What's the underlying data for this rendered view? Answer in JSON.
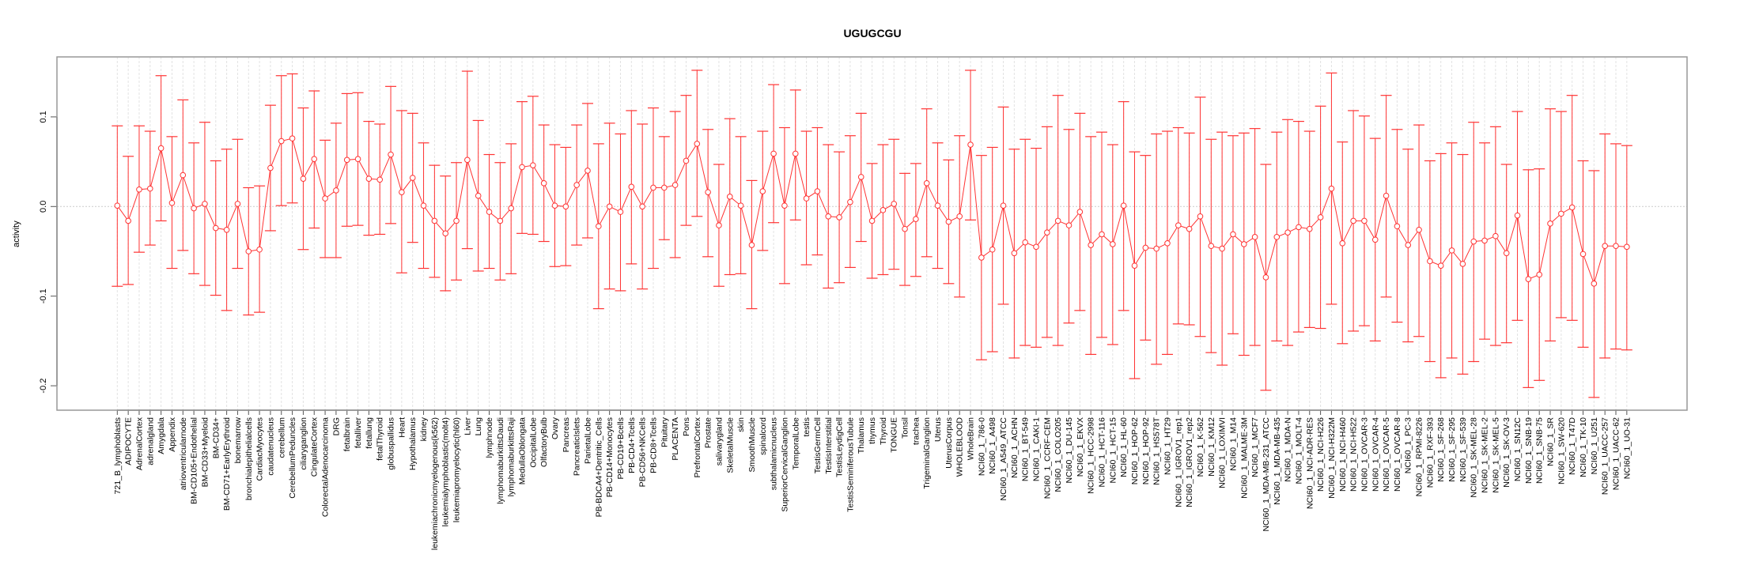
{
  "chart_data": {
    "type": "line",
    "title": "UGUGCGU",
    "xlabel": "",
    "ylabel": "activity",
    "ylim": [
      -0.233,
      0.163
    ],
    "yticks": [
      -0.2,
      -0.1,
      0.0,
      0.1
    ],
    "ytick_labels": [
      "-0.2",
      "-0.1",
      "0.0",
      "0.1"
    ],
    "grid": "vertical dashed at each category; horizontal dotted at 0",
    "color": "#ff3333",
    "categories": [
      "721_B_lymphoblasts",
      "ADIPOCYTE",
      "AdrenalCortex",
      "adrenalgland",
      "Amygdala",
      "Appendix",
      "atrioventricularnode",
      "BM-CD105+Endothelial",
      "BM-CD33+Myeloid",
      "BM-CD34+",
      "BM-CD71+EarlyErythroid",
      "bonemarrow",
      "bronchialepithelialcells",
      "CardiacMyocytes",
      "caudatenucleus",
      "cerebellum",
      "CerebellumPeduncles",
      "ciliaryganglion",
      "CingulateCortex",
      "ColorectalAdenocarcinoma",
      "DRG",
      "fetalbrain",
      "fetalliver",
      "fetallung",
      "fetalThyroid",
      "globuspallidus",
      "Heart",
      "Hypothalamus",
      "kidney",
      "leukemiachronicmyelogenous(k562)",
      "leukemialymphoblastic(molt4)",
      "leukemiapromyelocytic(hl60)",
      "Liver",
      "Lung",
      "lymphnode",
      "lymphomaburkittsDaudi",
      "lymphomaburkittsRaji",
      "MedullaOblongata",
      "OccipitalLobe",
      "OlfactoryBulb",
      "Ovary",
      "Pancreas",
      "PancreaticIslets",
      "ParietalLobe",
      "PB-BDCA4+Dentritic_Cells",
      "PB-CD14+Monocytes",
      "PB-CD19+Bcells",
      "PB-CD4+Tcells",
      "PB-CD56+NKCells",
      "PB-CD8+Tcells",
      "Pituitary",
      "PLACENTA",
      "Pons",
      "PrefrontalCortex",
      "Prostate",
      "salivarygland",
      "SkeletalMuscle",
      "skin",
      "SmoothMuscle",
      "spinalcord",
      "subthalamicnucleus",
      "SuperiorCervicalGanglion",
      "TemporalLobe",
      "testis",
      "TestisGermCell",
      "TestisInterstitial",
      "TestisLeydigCell",
      "TestisSeminiferousTubule",
      "Thalamus",
      "thymus",
      "Thyroid",
      "TONGUE",
      "Tonsil",
      "trachea",
      "TrigeminalGanglion",
      "Uterus",
      "UterusCorpus",
      "WHOLEBLOOD",
      "WholeBrain",
      "NCI60_1_786-0",
      "NCI60_1_A498",
      "NCI60_1_A549_ATCC",
      "NCI60_1_ACHN",
      "NCI60_1_BT-549",
      "NCI60_1_CAKI-1",
      "NCI60_1_CCRF-CEM",
      "NCI60_1_COLO205",
      "NCI60_1_DU-145",
      "NCI60_1_EKVX",
      "NCI60_1_HCC-2998",
      "NCI60_1_HCT-116",
      "NCI60_1_HCT-15",
      "NCI60_1_HL-60",
      "NCI60_1_HOP-62",
      "NCI60_1_HOP-92",
      "NCI60_1_HS578T",
      "NCI60_1_HT29",
      "NCI60_1_IGROV1_rep1",
      "NCI60_1_IGROV1_rep2",
      "NCI60_1_K-562",
      "NCI60_1_KM12",
      "NCI60_1_LOXIMVI",
      "NCI60_1_M14",
      "NCI60_1_MALME-3M",
      "NCI60_1_MCF7",
      "NCI60_1_MDA-MB-231_ATCC",
      "NCI60_1_MDA-MB-435",
      "NCI60_1_MDA-N",
      "NCI60_1_MOLT-4",
      "NCI60_1_NCI-ADR-RES",
      "NCI60_1_NCI-H226",
      "NCI60_1_NCI-H322M",
      "NCI60_1_NCI-H460",
      "NCI60_1_NCI-H522",
      "NCI60_1_OVCAR-3",
      "NCI60_1_OVCAR-4",
      "NCI60_1_OVCAR-5",
      "NCI60_1_OVCAR-8",
      "NCI60_1_PC-3",
      "NCI60_1_RPMI-8226",
      "NCI60_1_RXF-393",
      "NCI60_1_SF-268",
      "NCI60_1_SF-295",
      "NCI60_1_SF-539",
      "NCI60_1_SK-MEL-28",
      "NCI60_1_SK-MEL-2",
      "NCI60_1_SK-MEL-5",
      "NCI60_1_SK-OV-3",
      "NCI60_1_SN12C",
      "NCI60_1_SNB-19",
      "NCI60_1_SNB-75",
      "NCI60_1_SR",
      "NCI60_1_SW-620",
      "NCI60_1_T47D",
      "NCI60_1_TK-10",
      "NCI60_1_U251",
      "NCI60_1_UACC-257",
      "NCI60_1_UACC-62",
      "NCI60_1_UO-31"
    ],
    "values": [
      0.001,
      -0.016,
      0.019,
      0.02,
      0.065,
      0.004,
      0.035,
      -0.002,
      0.003,
      -0.024,
      -0.026,
      0.003,
      -0.05,
      -0.048,
      0.043,
      0.073,
      0.076,
      0.031,
      0.053,
      0.009,
      0.018,
      0.052,
      0.053,
      0.031,
      0.03,
      0.058,
      0.016,
      0.032,
      0.001,
      -0.016,
      -0.03,
      -0.016,
      0.052,
      0.012,
      -0.006,
      -0.016,
      -0.002,
      0.044,
      0.046,
      0.026,
      0.001,
      0.0,
      0.024,
      0.04,
      -0.022,
      0.0,
      -0.006,
      0.022,
      0.0,
      0.021,
      0.021,
      0.024,
      0.051,
      0.07,
      0.016,
      -0.021,
      0.011,
      0.001,
      -0.043,
      0.017,
      0.059,
      0.001,
      0.059,
      0.009,
      0.017,
      -0.011,
      -0.012,
      0.005,
      0.033,
      -0.016,
      -0.004,
      0.003,
      -0.025,
      -0.014,
      0.026,
      0.001,
      -0.017,
      -0.011,
      0.069,
      -0.057,
      -0.048,
      0.001,
      -0.052,
      -0.04,
      -0.045,
      -0.029,
      -0.016,
      -0.021,
      -0.006,
      -0.043,
      -0.031,
      -0.042,
      0.001,
      -0.066,
      -0.046,
      -0.047,
      -0.041,
      -0.021,
      -0.025,
      -0.011,
      -0.044,
      -0.047,
      -0.031,
      -0.042,
      -0.034,
      -0.079,
      -0.034,
      -0.029,
      -0.023,
      -0.025,
      -0.012,
      0.02,
      -0.041,
      -0.016,
      -0.016,
      -0.037,
      0.012,
      -0.022,
      -0.043,
      -0.026,
      -0.061,
      -0.066,
      -0.049,
      -0.064,
      -0.039,
      -0.038,
      -0.033,
      -0.052,
      -0.01,
      -0.081,
      -0.076,
      -0.019,
      -0.008,
      -0.001,
      -0.053,
      -0.086,
      -0.044,
      -0.044,
      -0.045
    ],
    "upper": [
      0.09,
      0.056,
      0.09,
      0.084,
      0.146,
      0.078,
      0.119,
      0.071,
      0.094,
      0.051,
      0.064,
      0.075,
      0.021,
      0.023,
      0.113,
      0.146,
      0.148,
      0.11,
      0.129,
      0.074,
      0.093,
      0.126,
      0.127,
      0.095,
      0.092,
      0.134,
      0.107,
      0.104,
      0.071,
      0.046,
      0.034,
      0.049,
      0.151,
      0.096,
      0.058,
      0.049,
      0.07,
      0.117,
      0.123,
      0.091,
      0.069,
      0.066,
      0.091,
      0.115,
      0.07,
      0.093,
      0.081,
      0.107,
      0.092,
      0.11,
      0.078,
      0.106,
      0.124,
      0.152,
      0.086,
      0.047,
      0.098,
      0.078,
      0.029,
      0.084,
      0.136,
      0.088,
      0.13,
      0.084,
      0.088,
      0.069,
      0.061,
      0.079,
      0.104,
      0.048,
      0.069,
      0.075,
      0.037,
      0.048,
      0.109,
      0.071,
      0.052,
      0.079,
      0.152,
      0.057,
      0.066,
      0.111,
      0.064,
      0.075,
      0.065,
      0.089,
      0.124,
      0.086,
      0.104,
      0.078,
      0.083,
      0.069,
      0.117,
      0.061,
      0.057,
      0.081,
      0.084,
      0.088,
      0.082,
      0.122,
      0.075,
      0.083,
      0.079,
      0.082,
      0.087,
      0.047,
      0.083,
      0.097,
      0.095,
      0.084,
      0.112,
      0.149,
      0.072,
      0.107,
      0.101,
      0.076,
      0.124,
      0.086,
      0.064,
      0.091,
      0.051,
      0.059,
      0.071,
      0.058,
      0.094,
      0.071,
      0.089,
      0.047,
      0.106,
      0.041,
      0.042,
      0.109,
      0.106,
      0.124,
      0.051,
      0.04,
      0.081,
      0.07,
      0.068
    ],
    "lower": [
      -0.089,
      -0.087,
      -0.051,
      -0.043,
      -0.016,
      -0.069,
      -0.049,
      -0.075,
      -0.088,
      -0.099,
      -0.116,
      -0.069,
      -0.121,
      -0.118,
      -0.027,
      0.001,
      0.004,
      -0.048,
      -0.024,
      -0.057,
      -0.057,
      -0.022,
      -0.021,
      -0.032,
      -0.031,
      -0.019,
      -0.074,
      -0.04,
      -0.069,
      -0.079,
      -0.094,
      -0.082,
      -0.047,
      -0.072,
      -0.069,
      -0.082,
      -0.075,
      -0.03,
      -0.031,
      -0.039,
      -0.067,
      -0.066,
      -0.043,
      -0.035,
      -0.114,
      -0.092,
      -0.094,
      -0.064,
      -0.092,
      -0.069,
      -0.037,
      -0.057,
      -0.021,
      -0.011,
      -0.056,
      -0.089,
      -0.076,
      -0.075,
      -0.114,
      -0.049,
      -0.018,
      -0.086,
      -0.015,
      -0.065,
      -0.054,
      -0.091,
      -0.085,
      -0.068,
      -0.039,
      -0.08,
      -0.076,
      -0.07,
      -0.088,
      -0.078,
      -0.056,
      -0.069,
      -0.086,
      -0.101,
      -0.015,
      -0.171,
      -0.162,
      -0.109,
      -0.169,
      -0.155,
      -0.157,
      -0.146,
      -0.155,
      -0.13,
      -0.116,
      -0.165,
      -0.146,
      -0.154,
      -0.116,
      -0.192,
      -0.149,
      -0.176,
      -0.165,
      -0.131,
      -0.132,
      -0.145,
      -0.163,
      -0.177,
      -0.142,
      -0.166,
      -0.155,
      -0.205,
      -0.15,
      -0.155,
      -0.14,
      -0.135,
      -0.136,
      -0.109,
      -0.153,
      -0.139,
      -0.133,
      -0.15,
      -0.101,
      -0.129,
      -0.151,
      -0.145,
      -0.173,
      -0.191,
      -0.169,
      -0.187,
      -0.173,
      -0.148,
      -0.155,
      -0.152,
      -0.127,
      -0.202,
      -0.194,
      -0.15,
      -0.124,
      -0.127,
      -0.157,
      -0.213,
      -0.169,
      -0.159,
      -0.16
    ]
  }
}
